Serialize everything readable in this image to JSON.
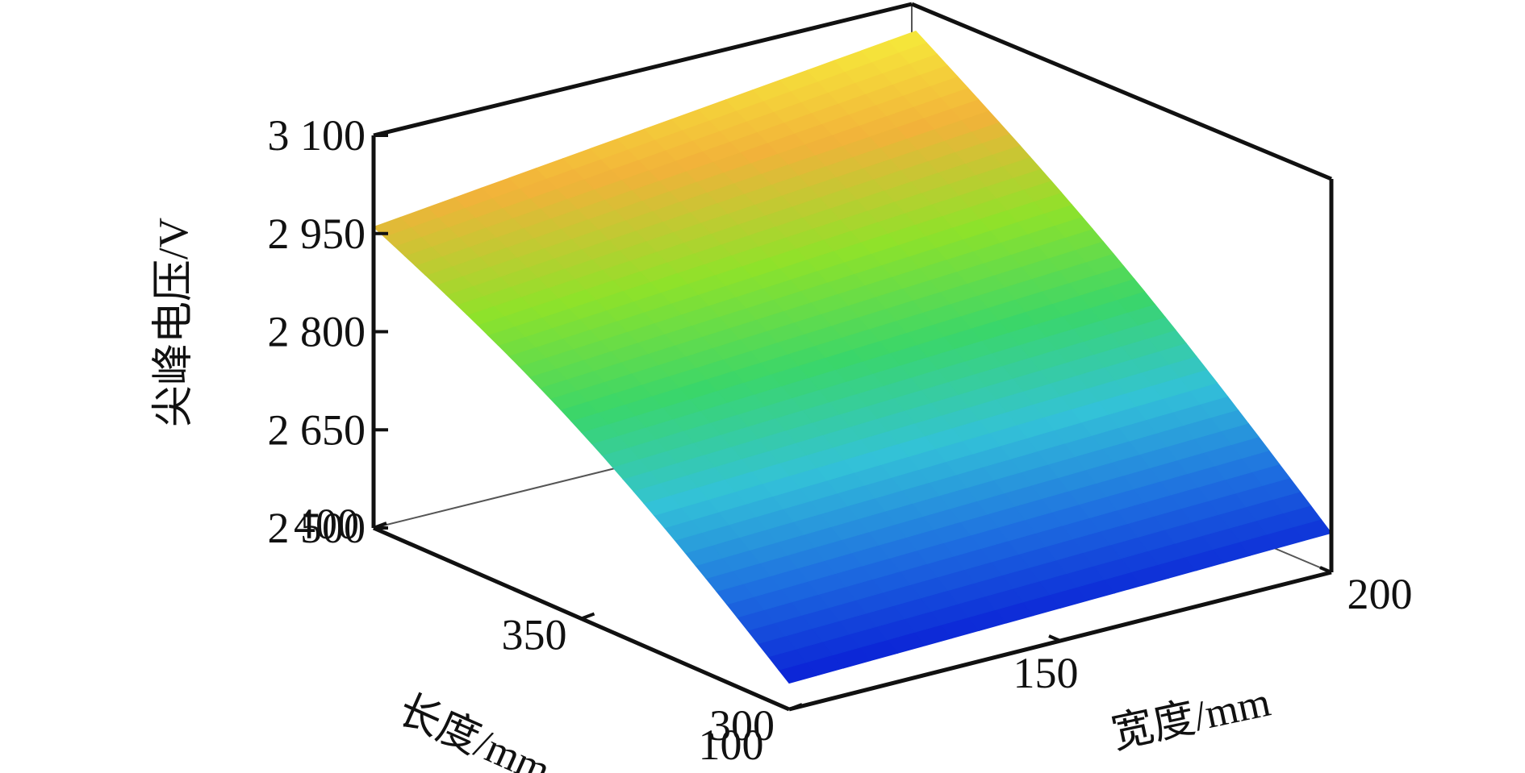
{
  "chart_data": {
    "type": "surface3d",
    "title": "",
    "zlabel": "尖峰电压/V",
    "xlabel": "长度/mm",
    "ylabel": "宽度/mm",
    "z_ticks": [
      "3 100",
      "2 950",
      "2 800",
      "2 650",
      "2 500"
    ],
    "z_tick_values": [
      3100,
      2950,
      2800,
      2650,
      2500
    ],
    "x_ticks": [
      "400",
      "350",
      "300"
    ],
    "x_tick_values": [
      400,
      350,
      300
    ],
    "y_ticks": [
      "100",
      "150",
      "200"
    ],
    "y_tick_values": [
      100,
      150,
      200
    ],
    "xlim": [
      300,
      400
    ],
    "ylim": [
      100,
      200
    ],
    "zlim": [
      2500,
      3100
    ],
    "colormap": [
      "#0a1fd6",
      "#1e6fe0",
      "#33c2d8",
      "#3ad66a",
      "#8fe22a",
      "#f2b23a",
      "#f6f23a"
    ],
    "surface_corners": [
      {
        "length": 400,
        "width": 100,
        "voltage": 2960
      },
      {
        "length": 400,
        "width": 200,
        "voltage": 3050
      },
      {
        "length": 300,
        "width": 100,
        "voltage": 2540
      },
      {
        "length": 300,
        "width": 200,
        "voltage": 2560
      }
    ]
  }
}
